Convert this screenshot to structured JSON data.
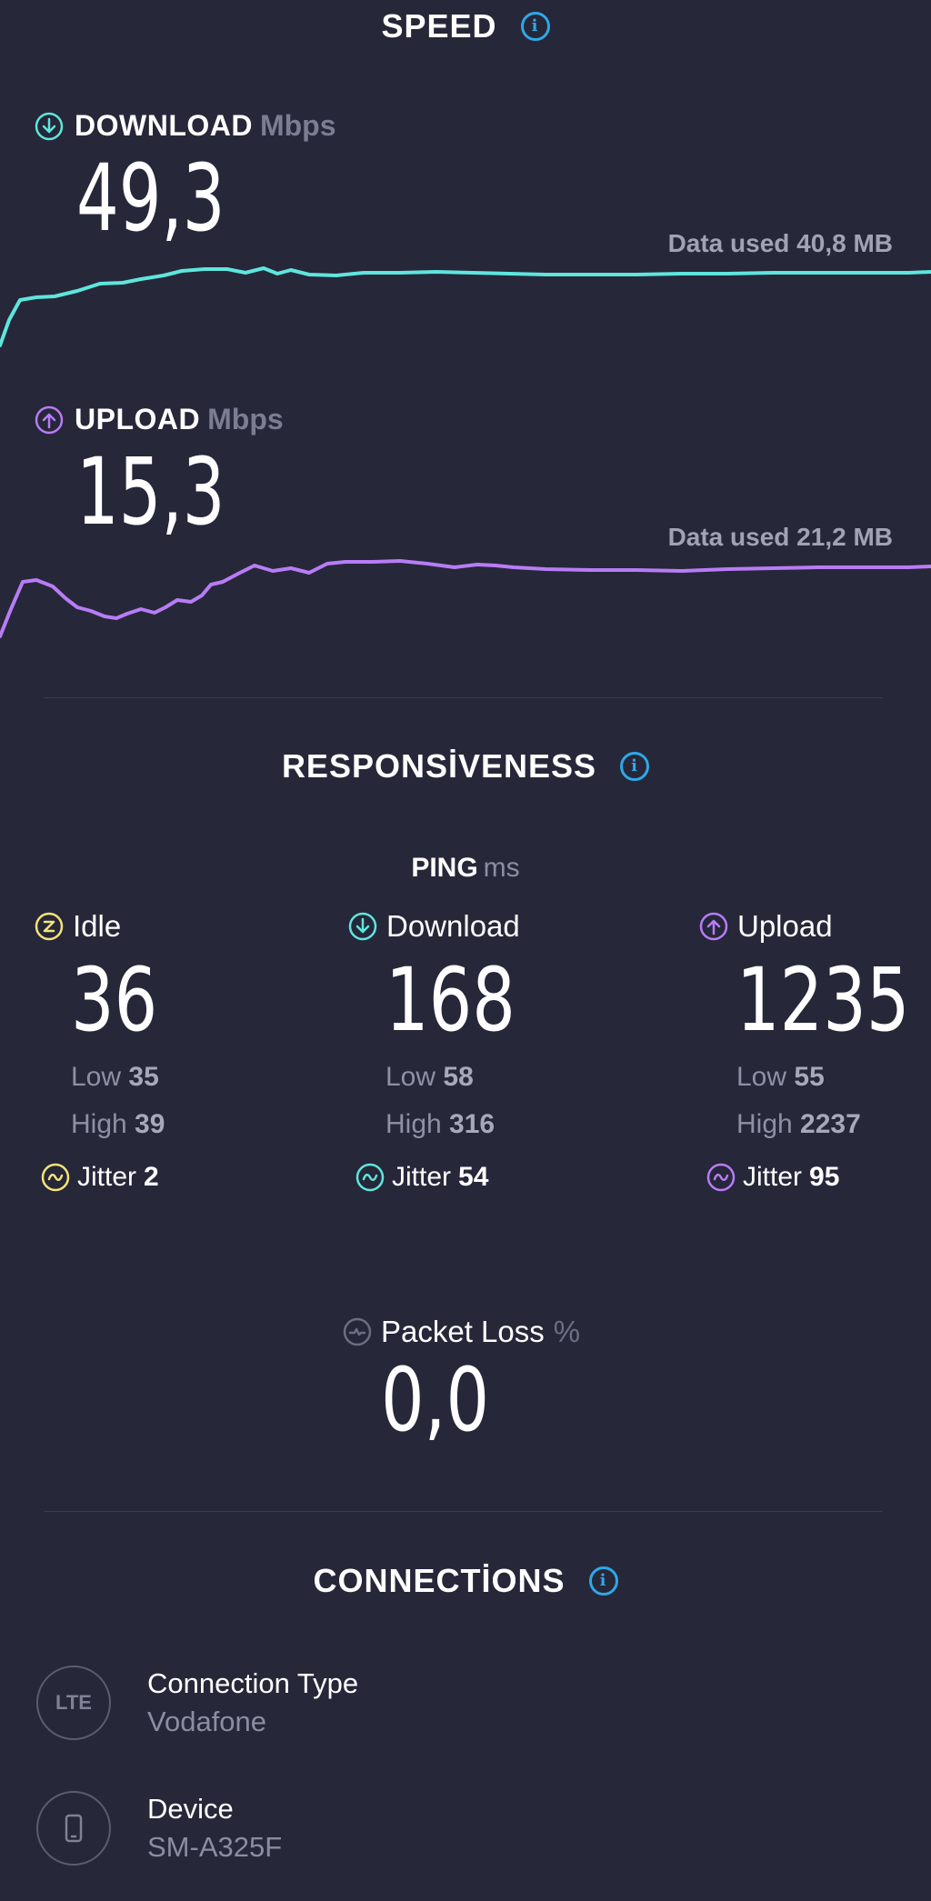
{
  "speed": {
    "title": "SPEED",
    "download": {
      "label": "DOWNLOAD",
      "unit": "Mbps",
      "value": "49,3",
      "data_used_label": "Data used",
      "data_used_value": "40,8 MB",
      "color": "#5ee6dc"
    },
    "upload": {
      "label": "UPLOAD",
      "unit": "Mbps",
      "value": "15,3",
      "data_used_label": "Data used",
      "data_used_value": "21,2 MB",
      "color": "#b87cf6"
    }
  },
  "responsiveness": {
    "title": "RESPONSİVENESS",
    "ping_label": "PING",
    "ping_unit": "ms",
    "idle": {
      "label": "Idle",
      "value": "36",
      "low_label": "Low",
      "low": "35",
      "high_label": "High",
      "high": "39",
      "jitter_label": "Jitter",
      "jitter": "2",
      "color": "#f5e37a"
    },
    "download": {
      "label": "Download",
      "value": "168",
      "low_label": "Low",
      "low": "58",
      "high_label": "High",
      "high": "316",
      "jitter_label": "Jitter",
      "jitter": "54",
      "color": "#5ee6dc"
    },
    "upload": {
      "label": "Upload",
      "value": "1235",
      "low_label": "Low",
      "low": "55",
      "high_label": "High",
      "high": "2237",
      "jitter_label": "Jitter",
      "jitter": "95",
      "color": "#b87cf6"
    },
    "packet_loss": {
      "label": "Packet Loss",
      "unit": "%",
      "value": "0,0"
    }
  },
  "connections": {
    "title": "CONNECTİONS",
    "connection_type": {
      "badge": "LTE",
      "label": "Connection Type",
      "value": "Vodafone"
    },
    "device": {
      "label": "Device",
      "value": "SM-A325F"
    }
  },
  "colors": {
    "background": "#262739",
    "info": "#2ea8e6",
    "download": "#5ee6dc",
    "upload": "#b87cf6",
    "idle": "#f5e37a"
  }
}
